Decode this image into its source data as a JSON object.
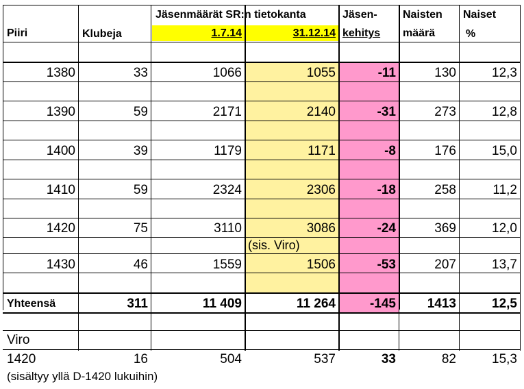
{
  "colors": {
    "yellow_header": "#ffff00",
    "yellow_col": "#fff2a0",
    "pink_col": "#ff99cc",
    "grid": "#000000"
  },
  "headers": {
    "col1": "Piiri",
    "col2": "Klubeja",
    "group_title": "Jäsenmäärät SR:n tietokanta",
    "date1": "1.7.14",
    "date2": "31.12.14",
    "dev_line1": "Jäsen-",
    "dev_line2": "kehitys",
    "women_count_line1": "Naisten",
    "women_count_line2": "määrä",
    "women_pct_line1": "Naiset",
    "women_pct_line2": "%"
  },
  "rows": [
    {
      "piiri": "1380",
      "klubeja": "33",
      "v1": "1066",
      "v2": "1055",
      "dev": "-11",
      "women": "130",
      "pct": "12,3"
    },
    {
      "piiri": "1390",
      "klubeja": "59",
      "v1": "2171",
      "v2": "2140",
      "dev": "-31",
      "women": "273",
      "pct": "12,8"
    },
    {
      "piiri": "1400",
      "klubeja": "39",
      "v1": "1179",
      "v2": "1171",
      "dev": "-8",
      "women": "176",
      "pct": "15,0"
    },
    {
      "piiri": "1410",
      "klubeja": "59",
      "v1": "2324",
      "v2": "2306",
      "dev": "-18",
      "women": "258",
      "pct": "11,2"
    },
    {
      "piiri": "1420",
      "klubeja": "75",
      "v1": "3110",
      "v2": "3086",
      "dev": "-24",
      "women": "369",
      "pct": "12,0"
    },
    {
      "piiri": "1430",
      "klubeja": "46",
      "v1": "1559",
      "v2": "1506",
      "dev": "-53",
      "women": "207",
      "pct": "13,7"
    }
  ],
  "note_viro": "(sis. Viro)",
  "total": {
    "label": "Yhteensä",
    "klubeja": "311",
    "v1": "11 409",
    "v2": "11 264",
    "dev": "-145",
    "women": "1413",
    "pct": "12,5"
  },
  "viro": {
    "label": "Viro",
    "piiri": "1420",
    "klubeja": "16",
    "v1": "504",
    "v2": "537",
    "dev": "33",
    "women": "82",
    "pct": "15,3"
  },
  "footnote": "(sisältyy yllä D-1420 lukuihin)"
}
